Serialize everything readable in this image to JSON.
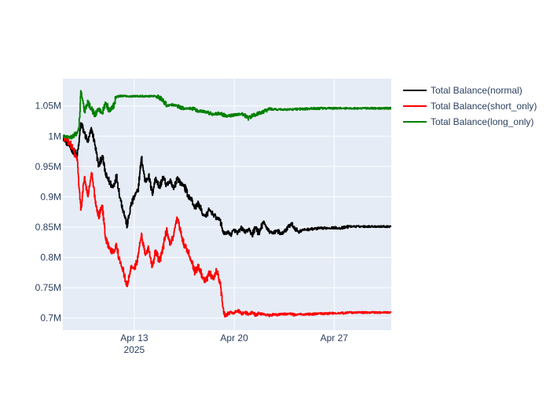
{
  "chart_data": {
    "type": "line",
    "title": "",
    "xlabel": "",
    "ylabel": "",
    "x_range": [
      "2025-04-08",
      "2025-05-01"
    ],
    "ylim": [
      680000,
      1095000
    ],
    "grid": true,
    "legend_position": "top-right",
    "x_ticks": [
      {
        "date": "2025-04-13",
        "label": "Apr 13",
        "sublabel": "2025"
      },
      {
        "date": "2025-04-20",
        "label": "Apr 20",
        "sublabel": ""
      },
      {
        "date": "2025-04-27",
        "label": "Apr 27",
        "sublabel": ""
      }
    ],
    "y_ticks": [
      {
        "value": 700000,
        "label": "0.7M"
      },
      {
        "value": 750000,
        "label": "0.75M"
      },
      {
        "value": 800000,
        "label": "0.8M"
      },
      {
        "value": 850000,
        "label": "0.85M"
      },
      {
        "value": 900000,
        "label": "0.9M"
      },
      {
        "value": 950000,
        "label": "0.95M"
      },
      {
        "value": 1000000,
        "label": "1M"
      },
      {
        "value": 1050000,
        "label": "1.05M"
      }
    ],
    "series": [
      {
        "name": "Total Balance(normal)",
        "color": "#000000",
        "points": [
          [
            "2025-04-08 00:00",
            1000000
          ],
          [
            "2025-04-08 12:00",
            982000
          ],
          [
            "2025-04-09 00:00",
            968000
          ],
          [
            "2025-04-09 03:00",
            990000
          ],
          [
            "2025-04-09 06:00",
            1022000
          ],
          [
            "2025-04-09 12:00",
            1005000
          ],
          [
            "2025-04-09 18:00",
            990000
          ],
          [
            "2025-04-10 00:00",
            1012000
          ],
          [
            "2025-04-10 06:00",
            985000
          ],
          [
            "2025-04-10 12:00",
            950000
          ],
          [
            "2025-04-10 18:00",
            968000
          ],
          [
            "2025-04-11 00:00",
            935000
          ],
          [
            "2025-04-11 12:00",
            915000
          ],
          [
            "2025-04-11 18:00",
            935000
          ],
          [
            "2025-04-12 00:00",
            898000
          ],
          [
            "2025-04-12 06:00",
            875000
          ],
          [
            "2025-04-12 12:00",
            852000
          ],
          [
            "2025-04-12 18:00",
            885000
          ],
          [
            "2025-04-13 00:00",
            900000
          ],
          [
            "2025-04-13 06:00",
            910000
          ],
          [
            "2025-04-13 12:00",
            965000
          ],
          [
            "2025-04-13 18:00",
            925000
          ],
          [
            "2025-04-14 00:00",
            935000
          ],
          [
            "2025-04-14 06:00",
            905000
          ],
          [
            "2025-04-14 12:00",
            932000
          ],
          [
            "2025-04-14 18:00",
            915000
          ],
          [
            "2025-04-15 00:00",
            932000
          ],
          [
            "2025-04-15 06:00",
            920000
          ],
          [
            "2025-04-15 12:00",
            925000
          ],
          [
            "2025-04-15 18:00",
            912000
          ],
          [
            "2025-04-16 00:00",
            932000
          ],
          [
            "2025-04-16 06:00",
            922000
          ],
          [
            "2025-04-16 12:00",
            918000
          ],
          [
            "2025-04-16 18:00",
            902000
          ],
          [
            "2025-04-17 00:00",
            895000
          ],
          [
            "2025-04-17 06:00",
            882000
          ],
          [
            "2025-04-17 12:00",
            890000
          ],
          [
            "2025-04-17 18:00",
            872000
          ],
          [
            "2025-04-18 00:00",
            868000
          ],
          [
            "2025-04-18 06:00",
            878000
          ],
          [
            "2025-04-18 12:00",
            872000
          ],
          [
            "2025-04-18 18:00",
            865000
          ],
          [
            "2025-04-19 00:00",
            862000
          ],
          [
            "2025-04-19 04:00",
            845000
          ],
          [
            "2025-04-19 08:00",
            838000
          ],
          [
            "2025-04-19 12:00",
            842000
          ],
          [
            "2025-04-19 18:00",
            838000
          ],
          [
            "2025-04-20 00:00",
            845000
          ],
          [
            "2025-04-20 06:00",
            840000
          ],
          [
            "2025-04-20 12:00",
            848000
          ],
          [
            "2025-04-20 18:00",
            842000
          ],
          [
            "2025-04-21 00:00",
            845000
          ],
          [
            "2025-04-21 06:00",
            838000
          ],
          [
            "2025-04-21 12:00",
            850000
          ],
          [
            "2025-04-21 18:00",
            838000
          ],
          [
            "2025-04-22 00:00",
            858000
          ],
          [
            "2025-04-22 06:00",
            850000
          ],
          [
            "2025-04-22 12:00",
            842000
          ],
          [
            "2025-04-22 18:00",
            840000
          ],
          [
            "2025-04-23 00:00",
            845000
          ],
          [
            "2025-04-23 06:00",
            838000
          ],
          [
            "2025-04-23 12:00",
            842000
          ],
          [
            "2025-04-23 18:00",
            850000
          ],
          [
            "2025-04-24 00:00",
            855000
          ],
          [
            "2025-04-24 06:00",
            848000
          ],
          [
            "2025-04-24 12:00",
            842000
          ],
          [
            "2025-04-24 18:00",
            845000
          ],
          [
            "2025-04-25 00:00",
            846000
          ],
          [
            "2025-04-26 00:00",
            848000
          ],
          [
            "2025-04-27 00:00",
            849000
          ],
          [
            "2025-04-27 12:00",
            848000
          ],
          [
            "2025-04-28 00:00",
            851000
          ],
          [
            "2025-04-29 00:00",
            851000
          ],
          [
            "2025-04-30 00:00",
            851000
          ],
          [
            "2025-05-01 00:00",
            851000
          ]
        ]
      },
      {
        "name": "Total Balance(short_only)",
        "color": "#ff0000",
        "points": [
          [
            "2025-04-08 00:00",
            1000000
          ],
          [
            "2025-04-08 12:00",
            988000
          ],
          [
            "2025-04-09 00:00",
            962000
          ],
          [
            "2025-04-09 03:00",
            915000
          ],
          [
            "2025-04-09 06:00",
            878000
          ],
          [
            "2025-04-09 12:00",
            932000
          ],
          [
            "2025-04-09 18:00",
            900000
          ],
          [
            "2025-04-10 00:00",
            940000
          ],
          [
            "2025-04-10 06:00",
            895000
          ],
          [
            "2025-04-10 12:00",
            868000
          ],
          [
            "2025-04-10 18:00",
            885000
          ],
          [
            "2025-04-11 00:00",
            828000
          ],
          [
            "2025-04-11 12:00",
            808000
          ],
          [
            "2025-04-11 18:00",
            820000
          ],
          [
            "2025-04-12 00:00",
            790000
          ],
          [
            "2025-04-12 06:00",
            775000
          ],
          [
            "2025-04-12 12:00",
            752000
          ],
          [
            "2025-04-12 18:00",
            785000
          ],
          [
            "2025-04-13 00:00",
            780000
          ],
          [
            "2025-04-13 06:00",
            800000
          ],
          [
            "2025-04-13 12:00",
            840000
          ],
          [
            "2025-04-13 18:00",
            805000
          ],
          [
            "2025-04-14 00:00",
            815000
          ],
          [
            "2025-04-14 06:00",
            785000
          ],
          [
            "2025-04-14 12:00",
            812000
          ],
          [
            "2025-04-14 18:00",
            792000
          ],
          [
            "2025-04-15 00:00",
            815000
          ],
          [
            "2025-04-15 06:00",
            845000
          ],
          [
            "2025-04-15 12:00",
            820000
          ],
          [
            "2025-04-15 18:00",
            835000
          ],
          [
            "2025-04-16 00:00",
            865000
          ],
          [
            "2025-04-16 06:00",
            840000
          ],
          [
            "2025-04-16 12:00",
            820000
          ],
          [
            "2025-04-16 18:00",
            810000
          ],
          [
            "2025-04-17 00:00",
            795000
          ],
          [
            "2025-04-17 06:00",
            775000
          ],
          [
            "2025-04-17 12:00",
            788000
          ],
          [
            "2025-04-17 18:00",
            768000
          ],
          [
            "2025-04-18 00:00",
            760000
          ],
          [
            "2025-04-18 06:00",
            775000
          ],
          [
            "2025-04-18 12:00",
            765000
          ],
          [
            "2025-04-18 18:00",
            778000
          ],
          [
            "2025-04-19 00:00",
            760000
          ],
          [
            "2025-04-19 04:00",
            725000
          ],
          [
            "2025-04-19 08:00",
            702000
          ],
          [
            "2025-04-19 12:00",
            706000
          ],
          [
            "2025-04-19 18:00",
            710000
          ],
          [
            "2025-04-20 00:00",
            708000
          ],
          [
            "2025-04-20 06:00",
            712000
          ],
          [
            "2025-04-20 12:00",
            707000
          ],
          [
            "2025-04-20 18:00",
            710000
          ],
          [
            "2025-04-21 00:00",
            706000
          ],
          [
            "2025-04-21 06:00",
            709000
          ],
          [
            "2025-04-21 12:00",
            705000
          ],
          [
            "2025-04-21 18:00",
            708000
          ],
          [
            "2025-04-22 00:00",
            706000
          ],
          [
            "2025-04-22 06:00",
            705000
          ],
          [
            "2025-04-22 12:00",
            704000
          ],
          [
            "2025-04-22 18:00",
            706000
          ],
          [
            "2025-04-23 00:00",
            705000
          ],
          [
            "2025-04-23 06:00",
            706000
          ],
          [
            "2025-04-23 12:00",
            707000
          ],
          [
            "2025-04-23 18:00",
            706000
          ],
          [
            "2025-04-24 00:00",
            707000
          ],
          [
            "2025-04-24 06:00",
            705000
          ],
          [
            "2025-04-24 12:00",
            706000
          ],
          [
            "2025-04-24 18:00",
            706000
          ],
          [
            "2025-04-25 00:00",
            706000
          ],
          [
            "2025-04-26 00:00",
            707000
          ],
          [
            "2025-04-27 00:00",
            708000
          ],
          [
            "2025-04-27 12:00",
            708000
          ],
          [
            "2025-04-28 00:00",
            709000
          ],
          [
            "2025-04-29 00:00",
            709000
          ],
          [
            "2025-04-30 00:00",
            709000
          ],
          [
            "2025-05-01 00:00",
            709000
          ]
        ]
      },
      {
        "name": "Total Balance(long_only)",
        "color": "#008000",
        "points": [
          [
            "2025-04-08 00:00",
            1000000
          ],
          [
            "2025-04-08 12:00",
            998000
          ],
          [
            "2025-04-09 00:00",
            1005000
          ],
          [
            "2025-04-09 03:00",
            1015000
          ],
          [
            "2025-04-09 06:00",
            1075000
          ],
          [
            "2025-04-09 12:00",
            1040000
          ],
          [
            "2025-04-09 18:00",
            1055000
          ],
          [
            "2025-04-10 00:00",
            1045000
          ],
          [
            "2025-04-10 06:00",
            1035000
          ],
          [
            "2025-04-10 12:00",
            1045000
          ],
          [
            "2025-04-10 18:00",
            1038000
          ],
          [
            "2025-04-11 00:00",
            1055000
          ],
          [
            "2025-04-11 06:00",
            1042000
          ],
          [
            "2025-04-11 12:00",
            1048000
          ],
          [
            "2025-04-11 18:00",
            1065000
          ],
          [
            "2025-04-12 00:00",
            1066000
          ],
          [
            "2025-04-13 00:00",
            1066000
          ],
          [
            "2025-04-14 00:00",
            1066000
          ],
          [
            "2025-04-14 12:00",
            1066000
          ],
          [
            "2025-04-15 00:00",
            1060000
          ],
          [
            "2025-04-15 06:00",
            1050000
          ],
          [
            "2025-04-15 12:00",
            1052000
          ],
          [
            "2025-04-16 00:00",
            1050000
          ],
          [
            "2025-04-16 12:00",
            1045000
          ],
          [
            "2025-04-17 00:00",
            1046000
          ],
          [
            "2025-04-17 12:00",
            1042000
          ],
          [
            "2025-04-18 00:00",
            1040000
          ],
          [
            "2025-04-18 12:00",
            1036000
          ],
          [
            "2025-04-19 00:00",
            1038000
          ],
          [
            "2025-04-19 12:00",
            1033000
          ],
          [
            "2025-04-20 00:00",
            1035000
          ],
          [
            "2025-04-20 12:00",
            1037000
          ],
          [
            "2025-04-21 00:00",
            1030000
          ],
          [
            "2025-04-21 12:00",
            1036000
          ],
          [
            "2025-04-22 00:00",
            1040000
          ],
          [
            "2025-04-22 12:00",
            1045000
          ],
          [
            "2025-04-23 00:00",
            1044000
          ],
          [
            "2025-04-24 00:00",
            1044000
          ],
          [
            "2025-04-25 00:00",
            1045000
          ],
          [
            "2025-04-26 00:00",
            1046000
          ],
          [
            "2025-04-27 00:00",
            1046000
          ],
          [
            "2025-04-28 00:00",
            1046000
          ],
          [
            "2025-04-29 00:00",
            1046000
          ],
          [
            "2025-04-30 00:00",
            1046000
          ],
          [
            "2025-05-01 00:00",
            1046000
          ]
        ]
      }
    ]
  }
}
